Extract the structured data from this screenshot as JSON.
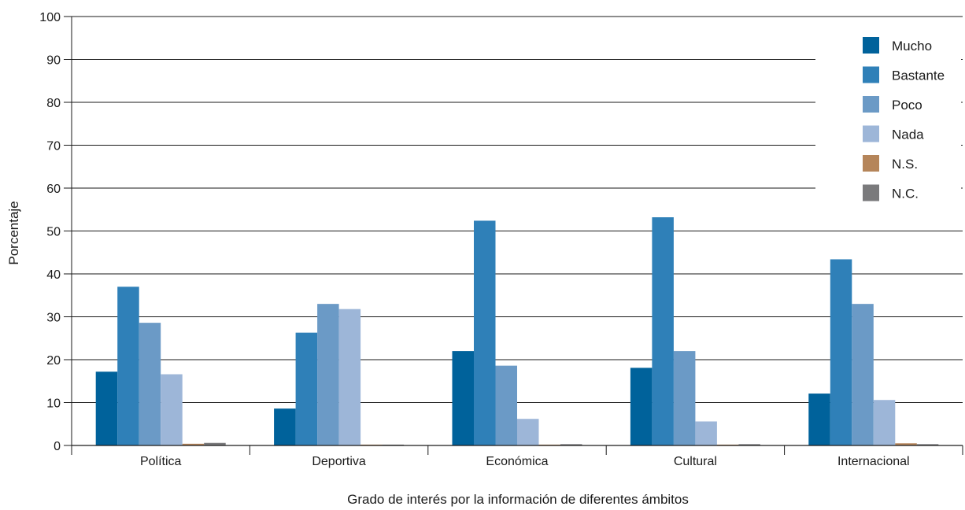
{
  "chart_data": {
    "type": "bar",
    "title": "",
    "xlabel": "Grado de interés por la información de diferentes ámbitos",
    "ylabel": "Porcentaje",
    "ylim": [
      0,
      100
    ],
    "yticks": [
      0,
      10,
      20,
      30,
      40,
      50,
      60,
      70,
      80,
      90,
      100
    ],
    "grid": true,
    "legend_position": "top-right",
    "categories": [
      "Política",
      "Deportiva",
      "Económica",
      "Cultural",
      "Internacional"
    ],
    "series": [
      {
        "name": "Mucho",
        "color": "#00629b",
        "values": [
          17.2,
          8.6,
          22.0,
          18.1,
          12.1
        ]
      },
      {
        "name": "Bastante",
        "color": "#2f80b8",
        "values": [
          37.0,
          26.3,
          52.4,
          53.2,
          43.4
        ]
      },
      {
        "name": "Poco",
        "color": "#6b9ac6",
        "values": [
          28.6,
          33.0,
          18.6,
          22.0,
          33.0
        ]
      },
      {
        "name": "Nada",
        "color": "#9db6d8",
        "values": [
          16.6,
          31.8,
          6.2,
          5.6,
          10.6
        ]
      },
      {
        "name": "N.S.",
        "color": "#b5855a",
        "values": [
          0.4,
          0.2,
          0.2,
          0.2,
          0.5
        ]
      },
      {
        "name": "N.C.",
        "color": "#7a7a7c",
        "values": [
          0.6,
          0.2,
          0.3,
          0.3,
          0.3
        ]
      }
    ]
  }
}
